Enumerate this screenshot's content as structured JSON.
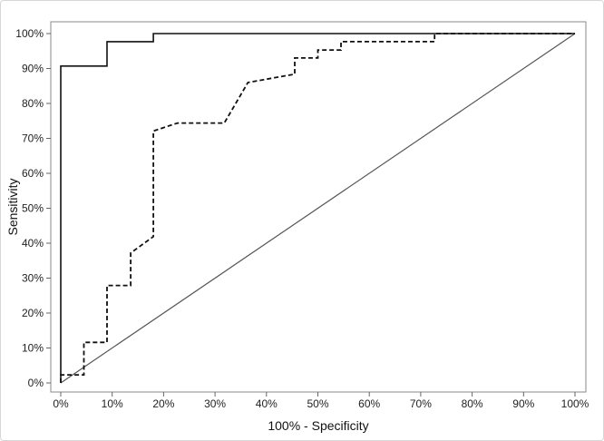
{
  "chart_data": {
    "type": "line",
    "title": "",
    "xlabel": "100% - Specificity",
    "ylabel": "Sensitivity",
    "xlim": [
      0,
      100
    ],
    "ylim": [
      0,
      100
    ],
    "x_ticks": [
      0,
      10,
      20,
      30,
      40,
      50,
      60,
      70,
      80,
      90,
      100
    ],
    "y_ticks": [
      0,
      10,
      20,
      30,
      40,
      50,
      60,
      70,
      80,
      90,
      100
    ],
    "x_tick_labels": [
      "0%",
      "10%",
      "20%",
      "30%",
      "40%",
      "50%",
      "60%",
      "70%",
      "80%",
      "90%",
      "100%"
    ],
    "y_tick_labels": [
      "0%",
      "10%",
      "20%",
      "30%",
      "40%",
      "50%",
      "60%",
      "70%",
      "80%",
      "90%",
      "100%"
    ],
    "grid": false,
    "legend": "none",
    "series": [
      {
        "style": "solid",
        "color": "#111111",
        "x": [
          0,
          0,
          9,
          9,
          18,
          18,
          100
        ],
        "y": [
          0,
          90.7,
          90.7,
          97.7,
          97.7,
          100,
          100
        ]
      },
      {
        "style": "dashed",
        "color": "#111111",
        "x": [
          0,
          0,
          4.5,
          4.5,
          9,
          9,
          13.6,
          13.6,
          18,
          18,
          22.7,
          31.8,
          36.4,
          45.5,
          45.5,
          50,
          50,
          54.5,
          54.5,
          72.7,
          72.7,
          100
        ],
        "y": [
          0,
          2.3,
          2.3,
          11.6,
          11.6,
          27.9,
          27.9,
          37.2,
          41.9,
          72.1,
          74.4,
          74.4,
          86,
          88.4,
          93,
          93,
          95.3,
          95.3,
          97.7,
          97.7,
          100,
          100
        ]
      },
      {
        "style": "reference",
        "color": "#555555",
        "x": [
          0,
          100
        ],
        "y": [
          0,
          100
        ]
      }
    ]
  }
}
